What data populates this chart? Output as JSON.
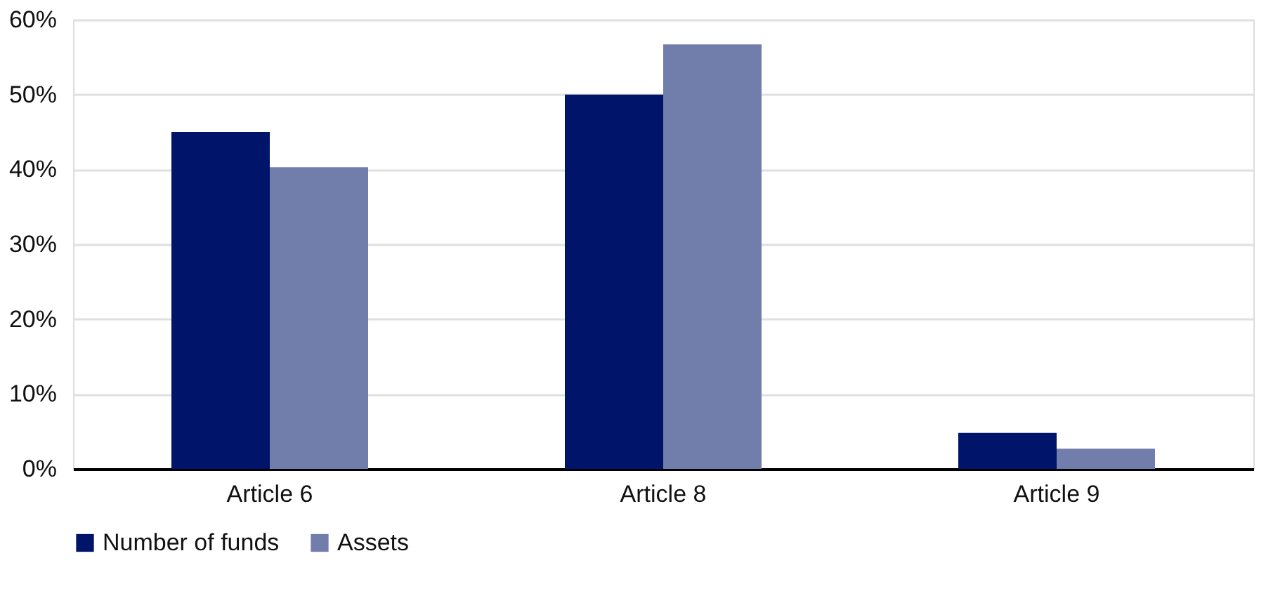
{
  "chart_data": {
    "type": "bar",
    "categories": [
      "Article 6",
      "Article 8",
      "Article 9"
    ],
    "series": [
      {
        "name": "Number of funds",
        "color": "#00146a",
        "values": [
          45.0,
          50.0,
          4.8
        ]
      },
      {
        "name": "Assets",
        "color": "#717eab",
        "values": [
          40.3,
          56.7,
          2.7
        ]
      }
    ],
    "ylim": [
      0,
      60
    ],
    "yticks": [
      {
        "value": 0,
        "label": "0%"
      },
      {
        "value": 10,
        "label": "10%"
      },
      {
        "value": 20,
        "label": "20%"
      },
      {
        "value": 30,
        "label": "30%"
      },
      {
        "value": 40,
        "label": "40%"
      },
      {
        "value": 50,
        "label": "50%"
      },
      {
        "value": 60,
        "label": "60%"
      }
    ],
    "grid": "y",
    "legend": "bottom"
  }
}
